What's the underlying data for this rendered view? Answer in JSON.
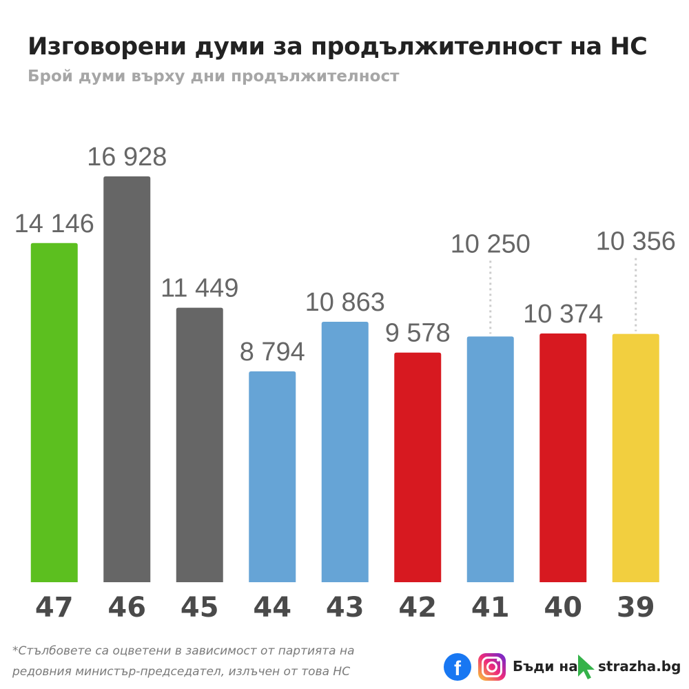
{
  "header": {
    "title": "Изговорени думи за продължителност на НС",
    "subtitle": "Брой думи върху дни продължителност"
  },
  "chart_data": {
    "type": "bar",
    "title": "Изговорени думи за продължителност на НС",
    "subtitle": "Брой думи върху дни продължителност",
    "categories": [
      "47",
      "46",
      "45",
      "44",
      "43",
      "42",
      "41",
      "40",
      "39"
    ],
    "values": [
      14146,
      16928,
      11449,
      8794,
      10863,
      9578,
      10250,
      10374,
      10356
    ],
    "value_labels": [
      "14 146",
      "16 928",
      "11 449",
      "8 794",
      "10 863",
      "9 578",
      "10 250",
      "10 374",
      "10 356"
    ],
    "colors": [
      "#5cbf1f",
      "#666666",
      "#666666",
      "#66a4d6",
      "#66a4d6",
      "#d71920",
      "#66a4d6",
      "#d71920",
      "#f2cf3f"
    ],
    "raised_labels": [
      "41",
      "39"
    ],
    "grid": false,
    "legend": "none"
  },
  "footnote": {
    "lines": [
      "*Стълбовете са оцветени в зависимост от партията на",
      "редовния министър-председател, излъчен от това НС"
    ]
  },
  "branding": {
    "fb_glyph": "f",
    "slogan": "Бъди на",
    "site": "strazha.bg",
    "icons": [
      "facebook-icon",
      "instagram-icon",
      "cursor-icon"
    ]
  }
}
